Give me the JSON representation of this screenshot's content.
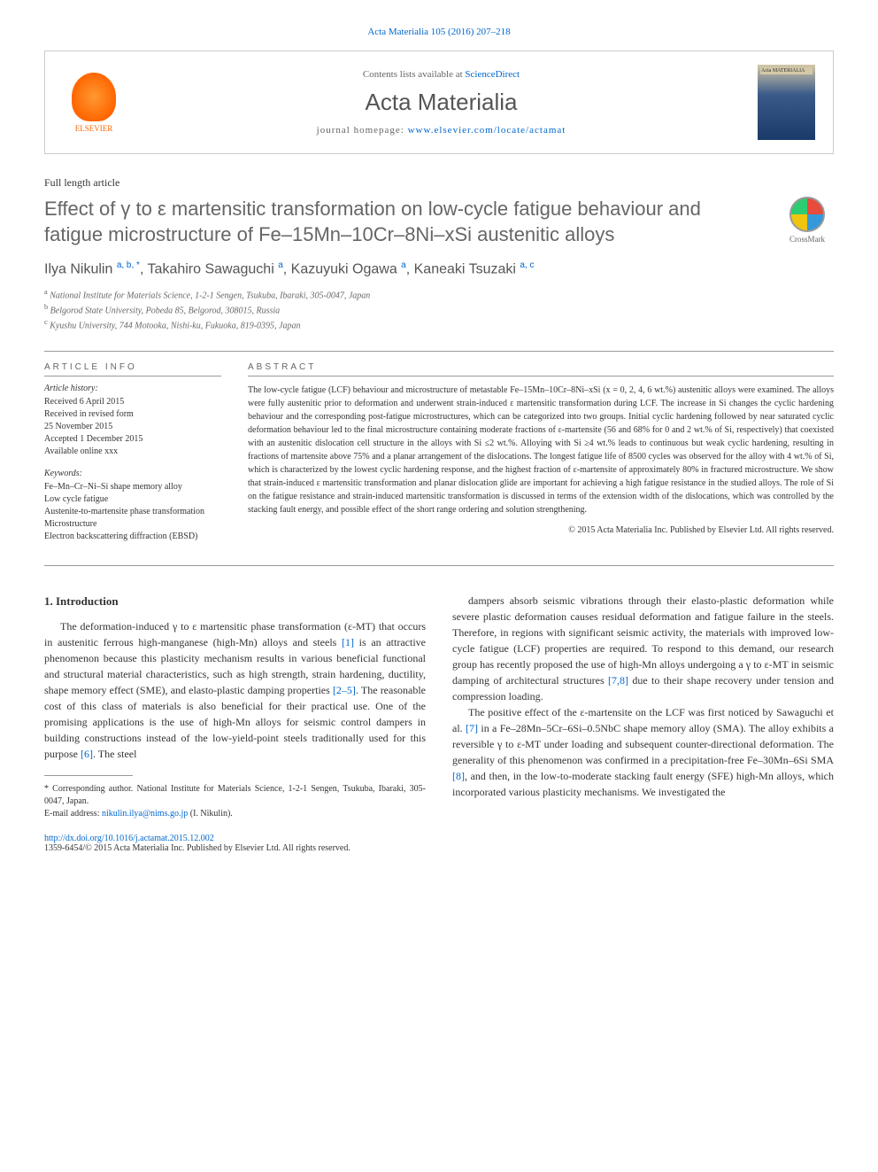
{
  "citation": "Acta Materialia 105 (2016) 207–218",
  "header": {
    "contents_prefix": "Contents lists available at ",
    "contents_link": "ScienceDirect",
    "journal_name": "Acta Materialia",
    "homepage_prefix": "journal homepage: ",
    "homepage_url": "www.elsevier.com/locate/actamat",
    "publisher": "ELSEVIER",
    "cover_title": "Acta MATERIALIA"
  },
  "article_type": "Full length article",
  "title": "Effect of γ to ε martensitic transformation on low-cycle fatigue behaviour and fatigue microstructure of Fe–15Mn–10Cr–8Ni–xSi austenitic alloys",
  "crossmark_label": "CrossMark",
  "authors_html": "Ilya Nikulin <sup>a, b, *</sup>, Takahiro Sawaguchi <sup>a</sup>, Kazuyuki Ogawa <sup>a</sup>, Kaneaki Tsuzaki <sup>a, c</sup>",
  "affiliations": [
    "a National Institute for Materials Science, 1-2-1 Sengen, Tsukuba, Ibaraki, 305-0047, Japan",
    "b Belgorod State University, Pobeda 85, Belgorod, 308015, Russia",
    "c Kyushu University, 744 Motooka, Nishi-ku, Fukuoka, 819-0395, Japan"
  ],
  "info": {
    "heading": "ARTICLE INFO",
    "history_label": "Article history:",
    "history": [
      "Received 6 April 2015",
      "Received in revised form",
      "25 November 2015",
      "Accepted 1 December 2015",
      "Available online xxx"
    ],
    "keywords_label": "Keywords:",
    "keywords": [
      "Fe–Mn–Cr–Ni–Si shape memory alloy",
      "Low cycle fatigue",
      "Austenite-to-martensite phase transformation",
      "Microstructure",
      "Electron backscattering diffraction (EBSD)"
    ]
  },
  "abstract": {
    "heading": "ABSTRACT",
    "text": "The low-cycle fatigue (LCF) behaviour and microstructure of metastable Fe–15Mn–10Cr–8Ni–xSi (x = 0, 2, 4, 6 wt.%) austenitic alloys were examined. The alloys were fully austenitic prior to deformation and underwent strain-induced ε martensitic transformation during LCF. The increase in Si changes the cyclic hardening behaviour and the corresponding post-fatigue microstructures, which can be categorized into two groups. Initial cyclic hardening followed by near saturated cyclic deformation behaviour led to the final microstructure containing moderate fractions of ε-martensite (56 and 68% for 0 and 2 wt.% of Si, respectively) that coexisted with an austenitic dislocation cell structure in the alloys with Si ≤2 wt.%. Alloying with Si ≥4 wt.% leads to continuous but weak cyclic hardening, resulting in fractions of martensite above 75% and a planar arrangement of the dislocations. The longest fatigue life of 8500 cycles was observed for the alloy with 4 wt.% of Si, which is characterized by the lowest cyclic hardening response, and the highest fraction of ε-martensite of approximately 80% in fractured microstructure. We show that strain-induced ε martensitic transformation and planar dislocation glide are important for achieving a high fatigue resistance in the studied alloys. The role of Si on the fatigue resistance and strain-induced martensitic transformation is discussed in terms of the extension width of the dislocations, which was controlled by the stacking fault energy, and possible effect of the short range ordering and solution strengthening.",
    "copyright": "© 2015 Acta Materialia Inc. Published by Elsevier Ltd. All rights reserved."
  },
  "body": {
    "section_heading": "1. Introduction",
    "col1_p1": "The deformation-induced γ to ε martensitic phase transformation (ε-MT) that occurs in austenitic ferrous high-manganese (high-Mn) alloys and steels [1] is an attractive phenomenon because this plasticity mechanism results in various beneficial functional and structural material characteristics, such as high strength, strain hardening, ductility, shape memory effect (SME), and elasto-plastic damping properties [2–5]. The reasonable cost of this class of materials is also beneficial for their practical use. One of the promising applications is the use of high-Mn alloys for seismic control dampers in building constructions instead of the low-yield-point steels traditionally used for this purpose [6]. The steel",
    "col2_p1": "dampers absorb seismic vibrations through their elasto-plastic deformation while severe plastic deformation causes residual deformation and fatigue failure in the steels. Therefore, in regions with significant seismic activity, the materials with improved low-cycle fatigue (LCF) properties are required. To respond to this demand, our research group has recently proposed the use of high-Mn alloys undergoing a γ to ε-MT in seismic damping of architectural structures [7,8] due to their shape recovery under tension and compression loading.",
    "col2_p2": "The positive effect of the ε-martensite on the LCF was first noticed by Sawaguchi et al. [7] in a Fe–28Mn–5Cr–6Si–0.5NbC shape memory alloy (SMA). The alloy exhibits a reversible γ to ε-MT under loading and subsequent counter-directional deformation. The generality of this phenomenon was confirmed in a precipitation-free Fe–30Mn–6Si SMA [8], and then, in the low-to-moderate stacking fault energy (SFE) high-Mn alloys, which incorporated various plasticity mechanisms. We investigated the"
  },
  "footnote": {
    "corresponding": "* Corresponding author. National Institute for Materials Science, 1-2-1 Sengen, Tsukuba, Ibaraki, 305-0047, Japan.",
    "email_label": "E-mail address: ",
    "email": "nikulin.ilya@nims.go.jp",
    "email_suffix": " (I. Nikulin)."
  },
  "footer": {
    "doi": "http://dx.doi.org/10.1016/j.actamat.2015.12.002",
    "issn_copyright": "1359-6454/© 2015 Acta Materialia Inc. Published by Elsevier Ltd. All rights reserved."
  },
  "colors": {
    "link": "#0066cc",
    "text": "#333333",
    "heading": "#666666"
  }
}
